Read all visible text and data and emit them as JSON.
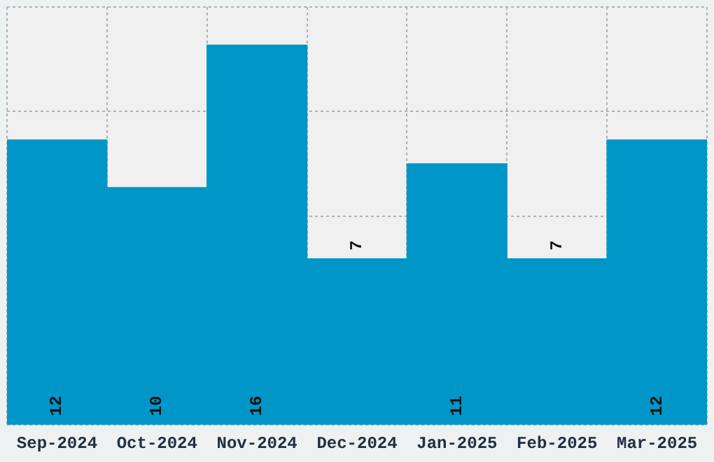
{
  "chart_data": {
    "type": "bar",
    "categories": [
      "Sep-2024",
      "Oct-2024",
      "Nov-2024",
      "Dec-2024",
      "Jan-2025",
      "Feb-2025",
      "Mar-2025"
    ],
    "values": [
      12,
      10,
      16,
      7,
      11,
      7,
      12
    ],
    "color": "#0096c8",
    "ylim": [
      0,
      17.6
    ],
    "tick_labels": "x",
    "grid": true,
    "legend": false,
    "data_labels": true
  }
}
